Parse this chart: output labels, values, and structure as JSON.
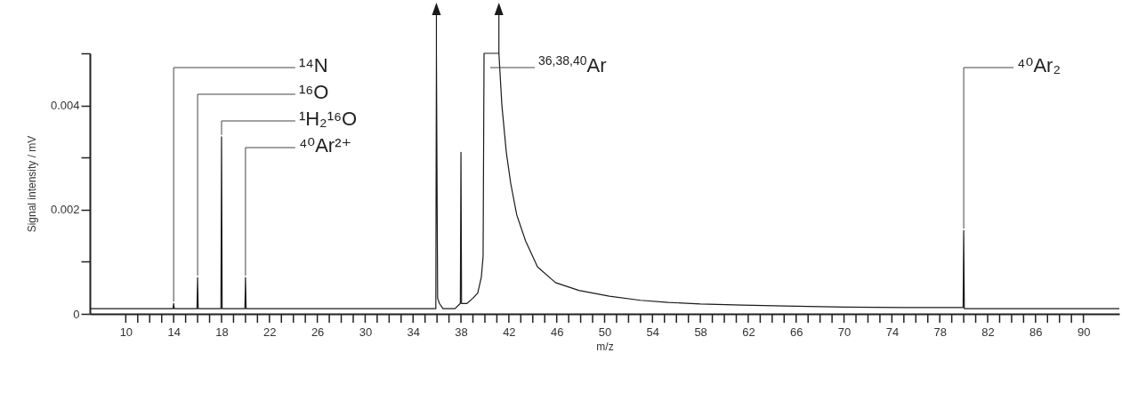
{
  "chart_data": {
    "type": "line",
    "xlabel": "m/z",
    "ylabel": "Signal intensity / mV",
    "x": [
      7,
      8,
      9,
      10,
      11,
      12,
      13,
      13.95,
      14,
      14.05,
      15,
      15.95,
      16,
      16.05,
      17,
      17.95,
      18,
      18.05,
      19,
      19.95,
      20,
      20.05,
      22,
      25,
      28,
      31,
      34,
      35.9,
      35.95,
      36.05,
      36.2,
      36.5,
      37,
      37.5,
      37.95,
      38,
      38.05,
      38.5,
      39,
      39.4,
      39.7,
      39.85,
      39.93,
      40.5,
      41.17,
      41.42,
      41.79,
      42.16,
      42.66,
      43.4,
      44.4,
      45.9,
      47.85,
      50.4,
      53,
      55.3,
      58,
      61.5,
      65,
      70,
      75,
      79.95,
      80,
      80.05,
      85,
      90,
      93
    ],
    "series": [
      {
        "color": "#1a1a1a",
        "values": [
          0.0001,
          0.0001,
          0.0001,
          0.0001,
          0.0001,
          0.0001,
          0.0001,
          0.0001,
          0.0002,
          0.0001,
          0.0001,
          0.0001,
          0.0007,
          0.0001,
          0.0001,
          0.0001,
          0.0034,
          0.0001,
          0.0001,
          0.0001,
          0.0007,
          0.0001,
          0.0001,
          0.0001,
          0.0001,
          0.0001,
          0.0001,
          0.0001,
          0.005,
          0.0003,
          0.0002,
          0.0001,
          0.0001,
          0.0001,
          0.0002,
          0.0031,
          0.0002,
          0.0002,
          0.0003,
          0.0004,
          0.0007,
          0.0011,
          0.005,
          0.005,
          0.005,
          0.004,
          0.0031,
          0.0025,
          0.0019,
          0.0014,
          0.0009,
          0.0006,
          0.00045,
          0.00034,
          0.00026,
          0.00022,
          0.00019,
          0.00017,
          0.00015,
          0.00013,
          0.00012,
          0.00012,
          0.0016,
          0.0001,
          0.0001,
          0.0001,
          0.0001
        ]
      }
    ],
    "xlim": [
      7,
      93
    ],
    "ylim": [
      0,
      0.005
    ],
    "xticks": [
      10,
      {
        "value": 11,
        "label": null
      },
      {
        "value": 12,
        "label": null
      },
      {
        "value": 13,
        "label": null
      },
      14,
      {
        "value": 15,
        "label": null
      },
      {
        "value": 16,
        "label": null
      },
      {
        "value": 17,
        "label": null
      },
      18,
      {
        "value": 19,
        "label": null
      },
      {
        "value": 20,
        "label": null
      },
      {
        "value": 21,
        "label": null
      },
      22,
      {
        "value": 23,
        "label": null
      },
      {
        "value": 24,
        "label": null
      },
      {
        "value": 25,
        "label": null
      },
      26,
      {
        "value": 27,
        "label": null
      },
      {
        "value": 28,
        "label": null
      },
      {
        "value": 29,
        "label": null
      },
      30,
      {
        "value": 31,
        "label": null
      },
      {
        "value": 32,
        "label": null
      },
      {
        "value": 33,
        "label": null
      },
      34,
      {
        "value": 35,
        "label": null
      },
      {
        "value": 36,
        "label": null
      },
      {
        "value": 37,
        "label": null
      },
      38,
      {
        "value": 39,
        "label": null
      },
      {
        "value": 40,
        "label": null
      },
      {
        "value": 41,
        "label": null
      },
      42,
      {
        "value": 43,
        "label": null
      },
      {
        "value": 44,
        "label": null
      },
      {
        "value": 45,
        "label": null
      },
      46,
      {
        "value": 47,
        "label": null
      },
      {
        "value": 48,
        "label": null
      },
      {
        "value": 49,
        "label": null
      },
      50,
      {
        "value": 51,
        "label": null
      },
      {
        "value": 52,
        "label": null
      },
      {
        "value": 53,
        "label": null
      },
      54,
      {
        "value": 55,
        "label": null
      },
      {
        "value": 56,
        "label": null
      },
      {
        "value": 57,
        "label": null
      },
      58,
      {
        "value": 59,
        "label": null
      },
      {
        "value": 60,
        "label": null
      },
      {
        "value": 61,
        "label": null
      },
      62,
      {
        "value": 63,
        "label": null
      },
      {
        "value": 64,
        "label": null
      },
      {
        "value": 65,
        "label": null
      },
      66,
      {
        "value": 67,
        "label": null
      },
      {
        "value": 68,
        "label": null
      },
      {
        "value": 69,
        "label": null
      },
      70,
      {
        "value": 71,
        "label": null
      },
      {
        "value": 72,
        "label": null
      },
      {
        "value": 73,
        "label": null
      },
      74,
      {
        "value": 75,
        "label": null
      },
      {
        "value": 76,
        "label": null
      },
      {
        "value": 77,
        "label": null
      },
      78,
      {
        "value": 79,
        "label": null
      },
      {
        "value": 80,
        "label": null
      },
      {
        "value": 81,
        "label": null
      },
      82,
      {
        "value": 83,
        "label": null
      },
      {
        "value": 84,
        "label": null
      },
      {
        "value": 85,
        "label": null
      },
      86,
      {
        "value": 87,
        "label": null
      },
      {
        "value": 88,
        "label": null
      },
      {
        "value": 89,
        "label": null
      },
      90
    ],
    "yticks": [
      0,
      {
        "value": 0.001,
        "label": null
      },
      0.002,
      {
        "value": 0.003,
        "label": null
      },
      0.004,
      {
        "value": 0.005,
        "label": null
      }
    ],
    "annotations": [
      {
        "text": "¹⁴N",
        "x": 14,
        "y": 0.0002
      },
      {
        "text": "¹⁶O",
        "x": 16,
        "y": 0.0007
      },
      {
        "text": "¹H₂¹⁶O",
        "x": 18,
        "y": 0.0034
      },
      {
        "text": "⁴⁰Ar²⁺",
        "x": 20,
        "y": 0.0007
      },
      {
        "text": "$^{36,38,40}$Ar",
        "x": 40,
        "y": 0.005
      },
      {
        "text": "⁴⁰Ar₂",
        "x": 80,
        "y": 0.0016
      }
    ]
  }
}
